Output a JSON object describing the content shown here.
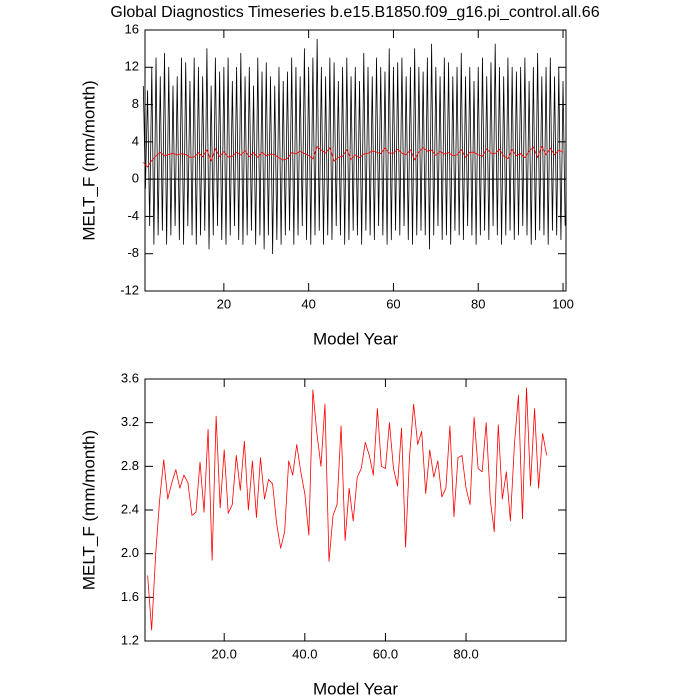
{
  "chart_data": [
    {
      "type": "line",
      "title": "Global Diagnostics Timeseries b.e15.B1850.f09_g16.pi_control.all.66",
      "xlabel": "Model Year",
      "ylabel": "MELT_F (mm/month)",
      "xlim": [
        1.4,
        100.7
      ],
      "xticks": [
        20,
        40,
        60,
        80,
        100
      ],
      "ylim": [
        -12,
        16
      ],
      "yticks": [
        -12,
        -8,
        -4,
        0,
        4,
        8,
        12,
        16
      ],
      "x": [
        1,
        1.5,
        2,
        2.5,
        3,
        3.5,
        4,
        4.5,
        5,
        5.5,
        6,
        6.5,
        7,
        7.5,
        8,
        8.5,
        9,
        9.5,
        10,
        10.5,
        11,
        11.5,
        12,
        12.5,
        13,
        13.5,
        14,
        14.5,
        15,
        15.5,
        16,
        16.5,
        17,
        17.5,
        18,
        18.5,
        19,
        19.5,
        20,
        20.5,
        21,
        21.5,
        22,
        22.5,
        23,
        23.5,
        24,
        24.5,
        25,
        25.5,
        26,
        26.5,
        27,
        27.5,
        28,
        28.5,
        29,
        29.5,
        30,
        30.5,
        31,
        31.5,
        32,
        32.5,
        33,
        33.5,
        34,
        34.5,
        35,
        35.5,
        36,
        36.5,
        37,
        37.5,
        38,
        38.5,
        39,
        39.5,
        40,
        40.5,
        41,
        41.5,
        42,
        42.5,
        43,
        43.5,
        44,
        44.5,
        45,
        45.5,
        46,
        46.5,
        47,
        47.5,
        48,
        48.5,
        49,
        49.5,
        50,
        50.5,
        51,
        51.5,
        52,
        52.5,
        53,
        53.5,
        54,
        54.5,
        55,
        55.5,
        56,
        56.5,
        57,
        57.5,
        58,
        58.5,
        59,
        59.5,
        60,
        60.5,
        61,
        61.5,
        62,
        62.5,
        63,
        63.5,
        64,
        64.5,
        65,
        65.5,
        66,
        66.5,
        67,
        67.5,
        68,
        68.5,
        69,
        69.5,
        70,
        70.5,
        71,
        71.5,
        72,
        72.5,
        73,
        73.5,
        74,
        74.5,
        75,
        75.5,
        76,
        76.5,
        77,
        77.5,
        78,
        78.5,
        79,
        79.5,
        80,
        80.5,
        81,
        81.5,
        82,
        82.5,
        83,
        83.5,
        84,
        84.5,
        85,
        85.5,
        86,
        86.5,
        87,
        87.5,
        88,
        88.5,
        89,
        89.5,
        90,
        90.5,
        91,
        91.5,
        92,
        92.5,
        93,
        93.5,
        94,
        94.5,
        95,
        95.5,
        96,
        96.5,
        97,
        97.5,
        98,
        98.5,
        99,
        99.5,
        100,
        100.5
      ],
      "series": [
        {
          "color": "#000000",
          "values": [
            10,
            -1,
            9.5,
            -5,
            12,
            -7,
            13,
            -6,
            11,
            -5.5,
            13.5,
            -7,
            12,
            -6,
            10,
            -5,
            11,
            -6.5,
            13,
            -7,
            12.5,
            -5,
            10.5,
            -6,
            13,
            -7,
            12,
            -6,
            11,
            -5.5,
            14,
            -7.5,
            10,
            -6,
            13,
            -5,
            11.5,
            -6.5,
            12,
            -7,
            13,
            -6,
            10.5,
            -5,
            12,
            -6.5,
            13.5,
            -7,
            11,
            -6,
            12,
            -5.5,
            10,
            -7,
            13,
            -6,
            11.5,
            -7.5,
            12.5,
            -6,
            11,
            -8,
            10,
            -6.5,
            12,
            -7,
            10.5,
            -6,
            11.5,
            -5.5,
            13,
            -7,
            12,
            -6,
            11,
            -5,
            14,
            -6.5,
            12,
            -7,
            13,
            -6,
            15,
            -5.5,
            12,
            -7,
            11,
            -6,
            13,
            -6.5,
            12.5,
            -5,
            10.5,
            -6,
            12,
            -7,
            13,
            -6.5,
            11,
            -5.5,
            12,
            -6,
            10.5,
            -7,
            13.5,
            -5.5,
            12,
            -6,
            11,
            -6.5,
            13,
            -5,
            12,
            -6,
            11.5,
            -7,
            14,
            -6.5,
            12,
            -5.5,
            12.5,
            -6,
            13,
            -5,
            11,
            -6.5,
            12,
            -7,
            14,
            -6,
            12,
            -5.5,
            11.5,
            -6,
            13,
            -7.5,
            14.5,
            -6,
            12,
            -5,
            11,
            -6.5,
            13,
            -6,
            12.5,
            -7,
            11,
            -5.5,
            12,
            -6,
            13.5,
            -6.5,
            11,
            -5,
            12,
            -6,
            10.5,
            -7,
            12,
            -6,
            13,
            -5.5,
            11,
            -6.5,
            12.5,
            -5,
            14.5,
            -6,
            12,
            -7,
            11,
            -6,
            13,
            -5.5,
            12,
            -6.5,
            11.5,
            -6,
            12,
            -5,
            13,
            -6,
            10.5,
            -7,
            12,
            -6.5,
            13.5,
            -5.5,
            11,
            -6,
            12,
            -7,
            13,
            -5.5,
            11,
            -6,
            12,
            -6.5,
            10.5,
            -5
          ]
        }
      ]
    },
    {
      "type": "line",
      "xlabel": "Model Year",
      "ylabel": "MELT_F (mm/month)",
      "xlim": [
        0.35,
        104.8
      ],
      "xticks": [
        {
          "value": 20,
          "label": "20.0"
        },
        {
          "value": 40,
          "label": "40.0"
        },
        {
          "value": 60,
          "label": "60.0"
        },
        {
          "value": 80,
          "label": "80.0"
        }
      ],
      "ylim": [
        1.2,
        3.6
      ],
      "yticks": [
        1.2,
        1.6,
        {
          "value": 2,
          "label": "2.0"
        },
        2.4,
        2.8,
        3.2,
        3.6
      ],
      "x": [
        1,
        2,
        3,
        4,
        5,
        6,
        7,
        8,
        9,
        10,
        11,
        12,
        13,
        14,
        15,
        16,
        17,
        18,
        19,
        20,
        21,
        22,
        23,
        24,
        25,
        26,
        27,
        28,
        29,
        30,
        31,
        32,
        33,
        34,
        35,
        36,
        37,
        38,
        39,
        40,
        41,
        42,
        43,
        44,
        45,
        46,
        47,
        48,
        49,
        50,
        51,
        52,
        53,
        54,
        55,
        56,
        57,
        58,
        59,
        60,
        61,
        62,
        63,
        64,
        65,
        66,
        67,
        68,
        69,
        70,
        71,
        72,
        73,
        74,
        75,
        76,
        77,
        78,
        79,
        80,
        81,
        82,
        83,
        84,
        85,
        86,
        87,
        88,
        89,
        90,
        91,
        92,
        93,
        94,
        95,
        96,
        97,
        98,
        99,
        100
      ],
      "series": [
        {
          "color": "#ff0000",
          "values": [
            1.8,
            1.3,
            2.0,
            2.5,
            2.86,
            2.5,
            2.65,
            2.77,
            2.6,
            2.72,
            2.65,
            2.35,
            2.38,
            2.84,
            2.38,
            3.14,
            1.94,
            3.26,
            2.42,
            2.95,
            2.37,
            2.45,
            2.9,
            2.58,
            3.03,
            2.4,
            2.85,
            2.33,
            2.88,
            2.5,
            2.68,
            2.64,
            2.28,
            2.05,
            2.2,
            2.85,
            2.72,
            3.0,
            2.75,
            2.55,
            2.17,
            3.5,
            3.1,
            2.8,
            3.37,
            1.93,
            2.35,
            2.45,
            3.17,
            2.12,
            2.6,
            2.3,
            2.7,
            2.78,
            3.02,
            2.9,
            2.72,
            3.33,
            2.8,
            2.78,
            3.2,
            2.78,
            2.62,
            3.15,
            2.06,
            2.9,
            3.37,
            3.0,
            3.12,
            2.55,
            2.95,
            2.7,
            2.85,
            2.52,
            2.6,
            3.17,
            2.34,
            2.88,
            2.9,
            2.6,
            2.45,
            3.25,
            2.78,
            2.75,
            3.2,
            2.5,
            2.2,
            3.18,
            2.5,
            2.75,
            2.3,
            3.0,
            3.45,
            2.32,
            3.52,
            2.62,
            3.33,
            2.6,
            3.1,
            2.9
          ]
        }
      ]
    }
  ]
}
